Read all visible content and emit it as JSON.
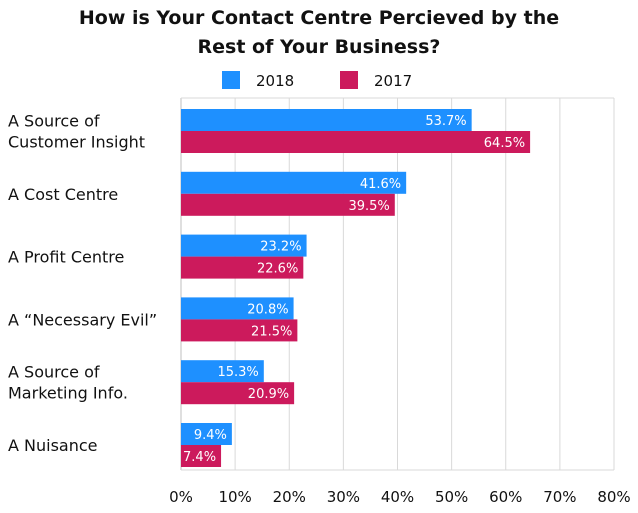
{
  "chart_data": {
    "type": "bar",
    "orientation": "horizontal",
    "title": "How is Your Contact Centre Percieved by the Rest of Your Business?",
    "title_lines": [
      "How is Your Contact Centre Percieved by the",
      "Rest of Your Business?"
    ],
    "categories": [
      "A Source of Customer Insight",
      "A Cost Centre",
      "A Profit Centre",
      "A “Necessary Evil”",
      "A Source of Marketing Info.",
      "A Nuisance"
    ],
    "category_lines": [
      [
        "A Source of",
        "Customer Insight"
      ],
      [
        "A Cost Centre"
      ],
      [
        "A Profit Centre"
      ],
      [
        "A “Necessary Evil”"
      ],
      [
        "A Source of",
        "Marketing Info."
      ],
      [
        "A Nuisance"
      ]
    ],
    "series": [
      {
        "name": "2018",
        "color": "#1e90ff",
        "values": [
          53.7,
          41.6,
          23.2,
          20.8,
          15.3,
          9.4
        ],
        "labels": [
          "53.7%",
          "41.6%",
          "23.2%",
          "20.8%",
          "15.3%",
          "9.4%"
        ]
      },
      {
        "name": "2017",
        "color": "#cc1a5c",
        "values": [
          64.5,
          39.5,
          22.6,
          21.5,
          20.9,
          7.4
        ],
        "labels": [
          "64.5%",
          "39.5%",
          "22.6%",
          "21.5%",
          "20.9%",
          "7.4%"
        ]
      }
    ],
    "xlim": [
      0,
      80
    ],
    "xticks": [
      0,
      10,
      20,
      30,
      40,
      50,
      60,
      70,
      80
    ],
    "xtick_labels": [
      "0%",
      "10%",
      "20%",
      "30%",
      "40%",
      "50%",
      "60%",
      "70%",
      "80%"
    ],
    "xlabel": "",
    "ylabel": "",
    "grid": true,
    "legend_position": "top"
  }
}
